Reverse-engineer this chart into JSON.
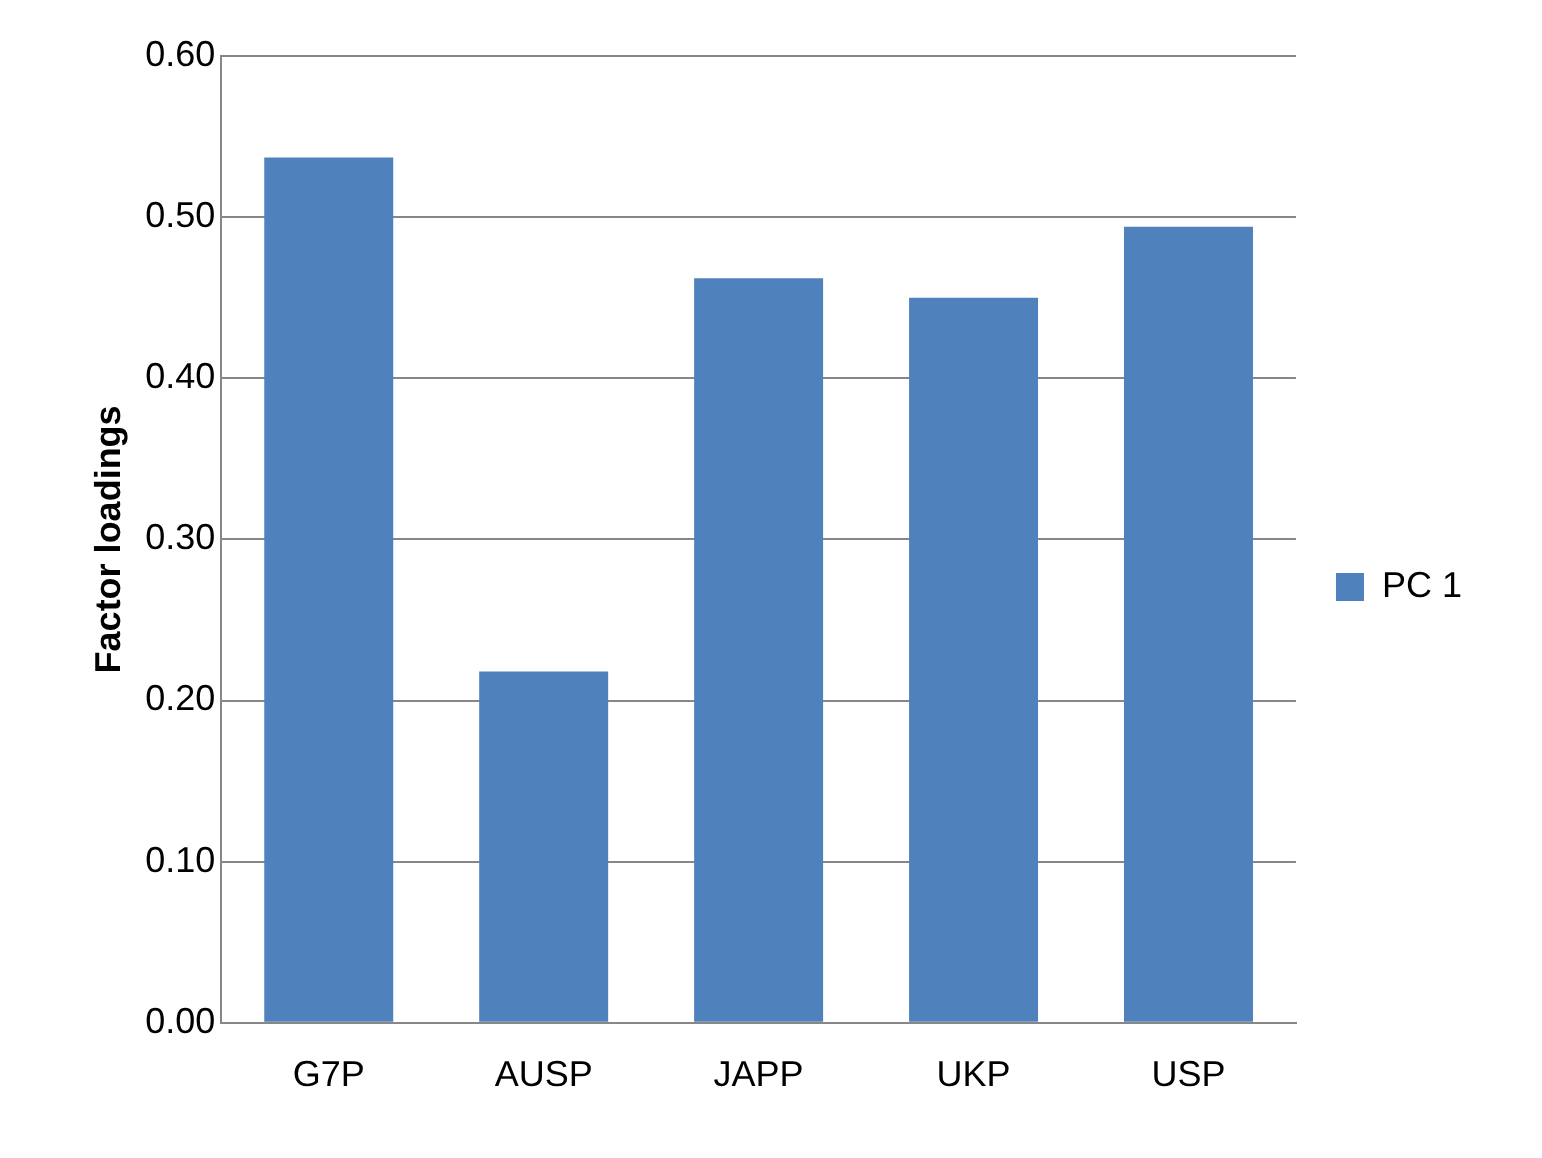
{
  "chart_data": {
    "type": "bar",
    "ylabel": "Factor loadings",
    "categories": [
      "G7P",
      "AUSP",
      "JAPP",
      "UKP",
      "USP"
    ],
    "series": [
      {
        "name": "PC 1",
        "color": "#4f81bd",
        "values": [
          0.537,
          0.218,
          0.462,
          0.45,
          0.494
        ]
      }
    ],
    "ylim": [
      0,
      0.6
    ],
    "yticks": [
      {
        "value": 0,
        "label": "0.00"
      },
      {
        "value": 0.1,
        "label": "0.10"
      },
      {
        "value": 0.2,
        "label": "0.20"
      },
      {
        "value": 0.3,
        "label": "0.30"
      },
      {
        "value": 0.4,
        "label": "0.40"
      },
      {
        "value": 0.5,
        "label": "0.50"
      },
      {
        "value": 0.6,
        "label": "0.60"
      }
    ],
    "grid": "y",
    "legend": "right"
  }
}
